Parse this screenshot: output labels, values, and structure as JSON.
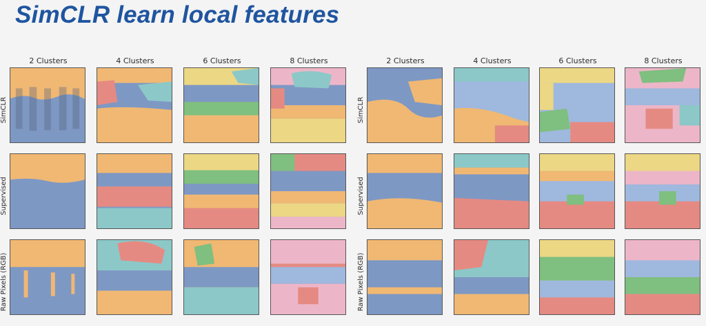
{
  "title": "SimCLR learn local features",
  "left_panel": {
    "columns": [
      "2 Clusters",
      "4 Clusters",
      "6 Clusters",
      "8 Clusters"
    ],
    "rows": [
      "SimCLR",
      "Supervised",
      "Raw Pixels (RGB)"
    ]
  },
  "right_panel": {
    "columns": [
      "2 Clusters",
      "4 Clusters",
      "6 Clusters",
      "8 Clusters"
    ],
    "rows": [
      "SimCLR",
      "Supervised",
      "Raw Pixels (RGB)"
    ]
  },
  "colors": {
    "orange": "#f0b873",
    "blue": "#7e98c4",
    "red": "#e58a82",
    "teal": "#8cc8c8",
    "green": "#7fbf7f",
    "yellow": "#ecd784",
    "pink": "#edb6c8",
    "lightblue": "#9fb8de"
  }
}
